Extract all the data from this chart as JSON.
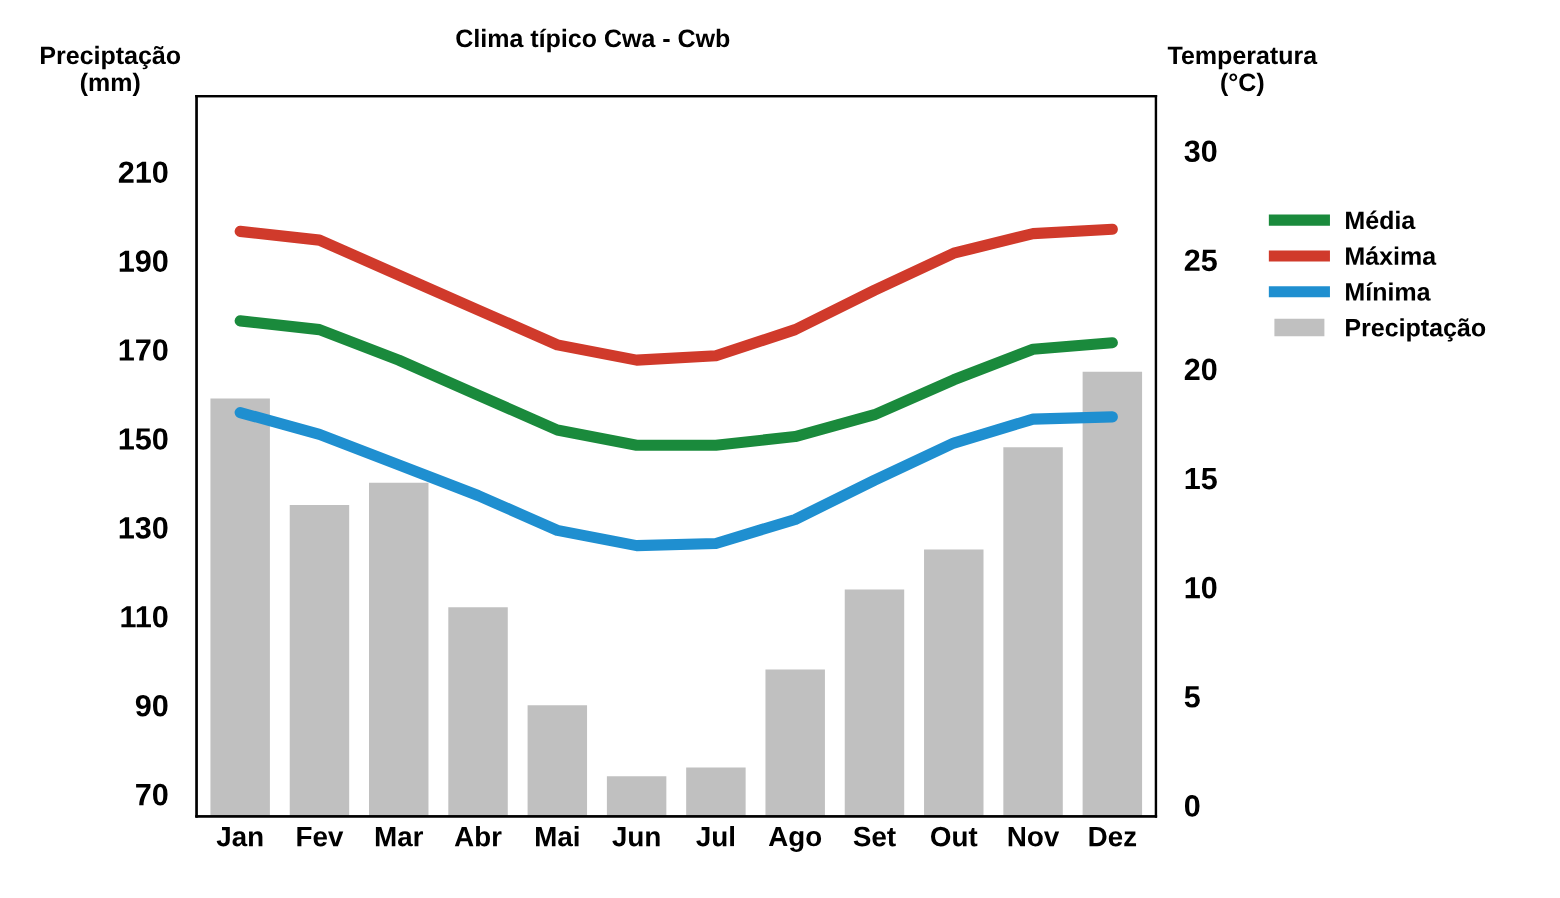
{
  "chart_data": {
    "type": "bar",
    "title": "Clima típico Cwa - Cwb",
    "ylabel": "Preciptação\n(mm)",
    "y2label": "Temperatura\n(°C)",
    "categories": [
      "Jan",
      "Fev",
      "Mar",
      "Abr",
      "Mai",
      "Jun",
      "Jul",
      "Ago",
      "Set",
      "Out",
      "Nov",
      "Dez"
    ],
    "series": [
      {
        "name": "Média",
        "type": "line",
        "axis": "y2",
        "color": "#1a8a3c",
        "values": [
          22.2,
          21.8,
          20.4,
          18.8,
          17.2,
          16.5,
          16.5,
          16.9,
          17.9,
          19.5,
          20.9,
          21.2
        ]
      },
      {
        "name": "Máxima",
        "type": "line",
        "axis": "y2",
        "color": "#d03a2b",
        "values": [
          26.3,
          25.9,
          24.3,
          22.7,
          21.1,
          20.4,
          20.6,
          21.8,
          23.6,
          25.3,
          26.2,
          26.4
        ]
      },
      {
        "name": "Mínima",
        "type": "line",
        "axis": "y2",
        "color": "#1f8fd0",
        "values": [
          18.0,
          17.0,
          15.6,
          14.2,
          12.6,
          11.9,
          12.0,
          13.1,
          14.9,
          16.6,
          17.7,
          17.8
        ]
      },
      {
        "name": "Preciptação",
        "axis": "y",
        "color": "#c0c0c0",
        "values": [
          159,
          135,
          140,
          112,
          90,
          74,
          76,
          98,
          116,
          125,
          148,
          165
        ]
      }
    ],
    "ylim": [
      65,
      227
    ],
    "yticks": [
      70,
      90,
      110,
      130,
      150,
      170,
      190,
      210
    ],
    "y2lim": [
      -0.5,
      32.5
    ],
    "y2ticks": [
      0,
      5,
      10,
      15,
      20,
      25,
      30
    ],
    "grid": false,
    "legend": "right",
    "line_style": "solid",
    "marker": "none"
  }
}
